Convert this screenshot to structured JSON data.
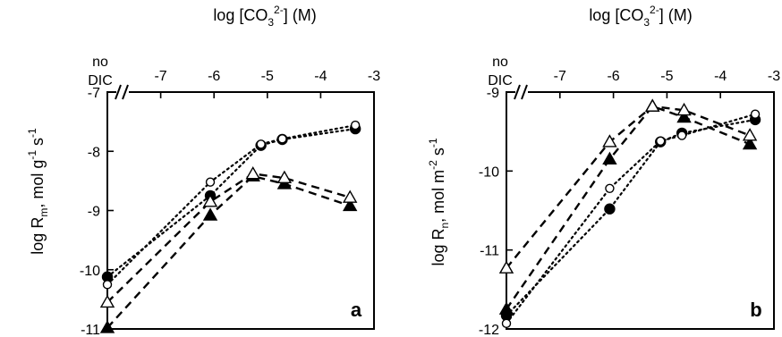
{
  "chart_data": [
    {
      "panel": "a",
      "type": "scatter",
      "xlabel_top": "log [CO3 2-] (M)",
      "xlabel_parts": {
        "pre": "log [CO",
        "sub": "3",
        "sup": "2-",
        "post": "] (M)"
      },
      "ylabel_parts": {
        "pre": "log R",
        "sub": "m",
        "mid": ", mol g",
        "sup1": "-1",
        "mid2": " s",
        "sup2": "-1"
      },
      "nodic_label": [
        "no",
        "DIC"
      ],
      "xticks": [
        "-7",
        "-6",
        "-5",
        "-4",
        "-3"
      ],
      "xtick_values": [
        -7,
        -6,
        -5,
        -4,
        -3
      ],
      "yticks": [
        "-7",
        "-8",
        "-9",
        "-10",
        "-11"
      ],
      "ytick_values": [
        -7,
        -8,
        -9,
        -10,
        -11
      ],
      "xlim": [
        -8.0,
        -3.0
      ],
      "ylim": [
        -11,
        -7
      ],
      "series": [
        {
          "marker": "filled-circle",
          "line": "dotted",
          "points": [
            [
              -8.0,
              -10.12
            ],
            [
              -6.07,
              -8.75
            ],
            [
              -5.12,
              -7.9
            ],
            [
              -4.72,
              -7.8
            ],
            [
              -3.35,
              -7.62
            ]
          ]
        },
        {
          "marker": "open-circle",
          "line": "dotted",
          "points": [
            [
              -8.0,
              -10.25
            ],
            [
              -6.07,
              -8.52
            ],
            [
              -5.12,
              -7.88
            ],
            [
              -4.72,
              -7.79
            ],
            [
              -3.35,
              -7.56
            ]
          ]
        },
        {
          "marker": "filled-triangle",
          "line": "dashed",
          "points": [
            [
              -8.0,
              -10.98
            ],
            [
              -6.07,
              -9.08
            ],
            [
              -5.27,
              -8.42
            ],
            [
              -4.68,
              -8.55
            ],
            [
              -3.45,
              -8.92
            ]
          ]
        },
        {
          "marker": "open-triangle",
          "line": "dashed",
          "points": [
            [
              -8.0,
              -10.55
            ],
            [
              -6.07,
              -8.85
            ],
            [
              -5.27,
              -8.38
            ],
            [
              -4.68,
              -8.45
            ],
            [
              -3.45,
              -8.78
            ]
          ]
        }
      ]
    },
    {
      "panel": "b",
      "type": "scatter",
      "xlabel_top": "log [CO3 2-] (M)",
      "xlabel_parts": {
        "pre": "log [CO",
        "sub": "3",
        "sup": "2-",
        "post": "] (M)"
      },
      "ylabel_parts": {
        "pre": "log R",
        "sub": "n",
        "mid": ", mol m",
        "sup1": "-2",
        "mid2": " s",
        "sup2": "-1"
      },
      "nodic_label": [
        "no",
        "DIC"
      ],
      "xticks": [
        "-7",
        "-6",
        "-5",
        "-4",
        "-3"
      ],
      "xtick_values": [
        -7,
        -6,
        -5,
        -4,
        -3
      ],
      "yticks": [
        "-9",
        "-10",
        "-11",
        "-12"
      ],
      "ytick_values": [
        -9,
        -10,
        -11,
        -12
      ],
      "xlim": [
        -8.0,
        -3.0
      ],
      "ylim": [
        -12,
        -9
      ],
      "series": [
        {
          "marker": "filled-circle",
          "line": "dotted",
          "points": [
            [
              -8.0,
              -11.83
            ],
            [
              -6.07,
              -10.48
            ],
            [
              -5.12,
              -9.63
            ],
            [
              -4.72,
              -9.52
            ],
            [
              -3.35,
              -9.35
            ]
          ]
        },
        {
          "marker": "open-circle",
          "line": "dotted",
          "points": [
            [
              -8.0,
              -11.93
            ],
            [
              -6.07,
              -10.22
            ],
            [
              -5.12,
              -9.62
            ],
            [
              -4.72,
              -9.55
            ],
            [
              -3.35,
              -9.28
            ]
          ]
        },
        {
          "marker": "filled-triangle",
          "line": "dashed",
          "points": [
            [
              -8.0,
              -11.75
            ],
            [
              -6.07,
              -9.85
            ],
            [
              -5.27,
              -9.18
            ],
            [
              -4.68,
              -9.32
            ],
            [
              -3.45,
              -9.66
            ]
          ]
        },
        {
          "marker": "open-triangle",
          "line": "dashed",
          "points": [
            [
              -8.0,
              -11.23
            ],
            [
              -6.07,
              -9.63
            ],
            [
              -5.27,
              -9.18
            ],
            [
              -4.68,
              -9.23
            ],
            [
              -3.45,
              -9.55
            ]
          ]
        }
      ]
    }
  ]
}
